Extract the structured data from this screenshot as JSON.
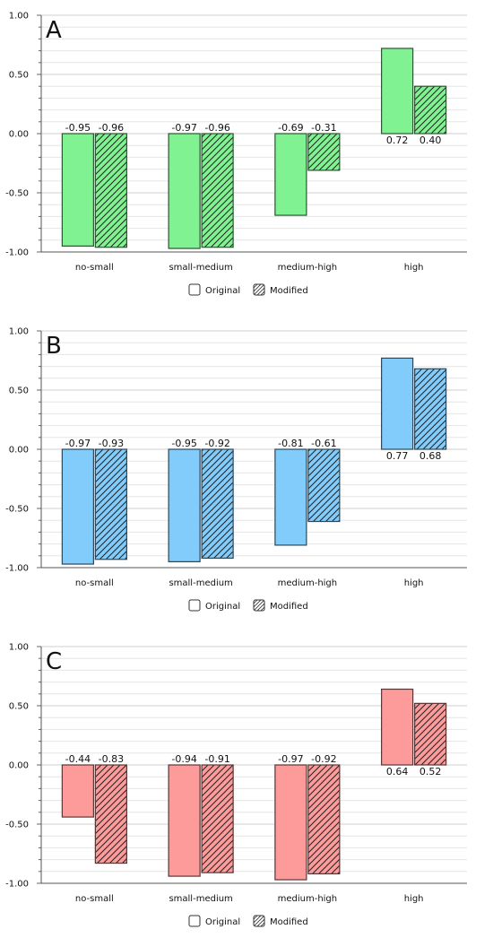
{
  "chart_data": [
    {
      "type": "bar",
      "panel_label": "A",
      "categories": [
        "no-small",
        "small-medium",
        "medium-high",
        "high"
      ],
      "series": [
        {
          "name": "Original",
          "values": [
            -0.95,
            -0.97,
            -0.69,
            0.72
          ],
          "labels": [
            "-0.95",
            "-0.97",
            "-0.69",
            "0.72"
          ],
          "pattern": "solid"
        },
        {
          "name": "Modified",
          "values": [
            -0.96,
            -0.96,
            -0.31,
            0.4
          ],
          "labels": [
            "-0.96",
            "-0.96",
            "-0.31",
            "0.40"
          ],
          "pattern": "hatched"
        }
      ],
      "ylim": [
        -1.0,
        1.0
      ],
      "yticks": [
        "1.00",
        "0.50",
        "0.00",
        "-0.50",
        "-1.00"
      ],
      "color": "#80f291",
      "grid": true,
      "legend": "bottom-center"
    },
    {
      "type": "bar",
      "panel_label": "B",
      "categories": [
        "no-small",
        "small-medium",
        "medium-high",
        "high"
      ],
      "series": [
        {
          "name": "Original",
          "values": [
            -0.97,
            -0.95,
            -0.81,
            0.77
          ],
          "labels": [
            "-0.97",
            "-0.95",
            "-0.81",
            "0.77"
          ],
          "pattern": "solid"
        },
        {
          "name": "Modified",
          "values": [
            -0.93,
            -0.92,
            -0.61,
            0.68
          ],
          "labels": [
            "-0.93",
            "-0.92",
            "-0.61",
            "0.68"
          ],
          "pattern": "hatched"
        }
      ],
      "ylim": [
        -1.0,
        1.0
      ],
      "yticks": [
        "1.00",
        "0.50",
        "0.00",
        "-0.50",
        "-1.00"
      ],
      "color": "#82ccfb",
      "grid": true,
      "legend": "bottom-center"
    },
    {
      "type": "bar",
      "panel_label": "C",
      "categories": [
        "no-small",
        "small-medium",
        "medium-high",
        "high"
      ],
      "series": [
        {
          "name": "Original",
          "values": [
            -0.44,
            -0.94,
            -0.97,
            0.64
          ],
          "labels": [
            "-0.44",
            "-0.94",
            "-0.97",
            "0.64"
          ],
          "pattern": "solid"
        },
        {
          "name": "Modified",
          "values": [
            -0.83,
            -0.91,
            -0.92,
            0.52
          ],
          "labels": [
            "-0.83",
            "-0.91",
            "-0.92",
            "0.52"
          ],
          "pattern": "hatched"
        }
      ],
      "ylim": [
        -1.0,
        1.0
      ],
      "yticks": [
        "1.00",
        "0.50",
        "0.00",
        "-0.50",
        "-1.00"
      ],
      "color": "#fd9b9b",
      "grid": true,
      "legend": "bottom-center"
    }
  ]
}
